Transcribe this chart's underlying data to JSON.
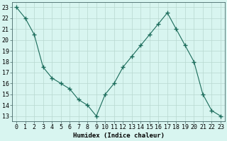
{
  "x": [
    0,
    1,
    2,
    3,
    4,
    5,
    6,
    7,
    8,
    9,
    10,
    11,
    12,
    13,
    14,
    15,
    16,
    17,
    18,
    19,
    20,
    21,
    22,
    23
  ],
  "y": [
    23,
    22,
    20.5,
    17.5,
    16.5,
    16,
    15.5,
    14.5,
    14,
    13,
    15,
    16,
    17.5,
    18.5,
    19.5,
    20.5,
    21.5,
    22.5,
    21,
    19.5,
    18,
    15,
    13.5,
    13
  ],
  "line_color": "#1a6b5a",
  "marker": "+",
  "bg_color": "#d8f5f0",
  "grid_color": "#b8d8d0",
  "xlabel": "Humidex (Indice chaleur)",
  "ylabel_ticks": [
    13,
    14,
    15,
    16,
    17,
    18,
    19,
    20,
    21,
    22,
    23
  ],
  "xlim": [
    -0.5,
    23.5
  ],
  "ylim": [
    12.5,
    23.5
  ],
  "axis_label_fontsize": 6.5,
  "tick_fontsize": 6
}
